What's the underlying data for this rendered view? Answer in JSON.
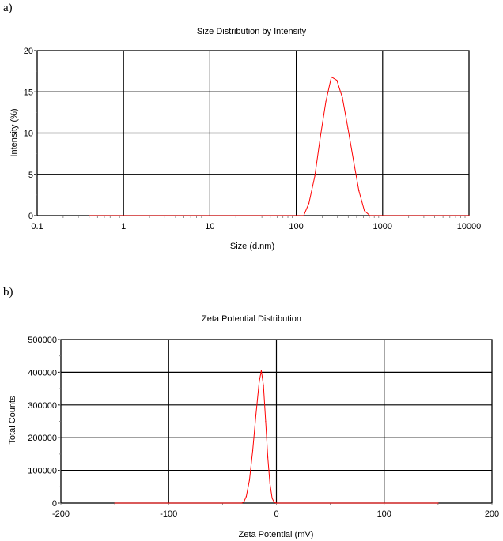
{
  "panels": {
    "a_label": "a)",
    "b_label": "b)"
  },
  "chart_data": [
    {
      "type": "line",
      "title": "Size Distribution by Intensity",
      "xlabel": "Size (d.nm)",
      "ylabel": "Intensity (%)",
      "xscale": "log",
      "xlim": [
        0.1,
        10000
      ],
      "ylim": [
        0,
        20
      ],
      "xticks": [
        0.1,
        1,
        10,
        100,
        1000,
        10000
      ],
      "xtick_labels": [
        "0.1",
        "1",
        "10",
        "100",
        "1000",
        "10000"
      ],
      "yticks": [
        0,
        5,
        10,
        15,
        20
      ],
      "ytick_labels": [
        "0",
        "5",
        "10",
        "15",
        "20"
      ],
      "grid": true,
      "line_color": "#ff0000",
      "series": [
        {
          "x": [
            0.4,
            100,
            122,
            140,
            164,
            190,
            220,
            255,
            295,
            342,
            396,
            459,
            531,
            615,
            712,
            825,
            1000,
            2000,
            5000,
            10000
          ],
          "y": [
            0,
            0,
            0,
            1.5,
            4.8,
            9.5,
            13.8,
            16.8,
            16.4,
            14.3,
            10.6,
            6.7,
            3.0,
            0.6,
            0,
            0,
            0,
            0,
            0,
            0
          ]
        }
      ]
    },
    {
      "type": "line",
      "title": "Zeta Potential Distribution",
      "xlabel": "Zeta Potential (mV)",
      "ylabel": "Total Counts",
      "xlim": [
        -200,
        200
      ],
      "ylim": [
        0,
        500000
      ],
      "xticks": [
        -200,
        -100,
        0,
        100,
        200
      ],
      "xtick_labels": [
        "-200",
        "-100",
        "0",
        "100",
        "200"
      ],
      "yticks": [
        0,
        100000,
        200000,
        300000,
        400000,
        500000
      ],
      "ytick_labels": [
        "0",
        "100000",
        "200000",
        "300000",
        "400000",
        "500000"
      ],
      "grid": true,
      "line_color": "#ff0000",
      "series": [
        {
          "x": [
            -150,
            -32,
            -30,
            -28,
            -25,
            -22,
            -19,
            -16,
            -14,
            -12,
            -10,
            -8,
            -6,
            -4,
            -2,
            0,
            150
          ],
          "y": [
            0,
            0,
            5000,
            20000,
            70000,
            160000,
            270000,
            370000,
            405000,
            360000,
            250000,
            140000,
            60000,
            15000,
            2000,
            0,
            0
          ]
        }
      ]
    }
  ]
}
